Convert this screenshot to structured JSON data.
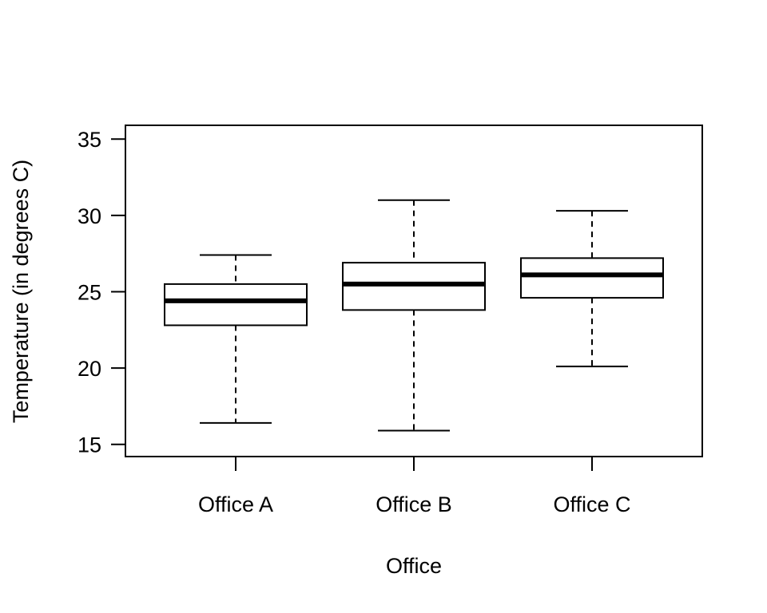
{
  "chart_data": {
    "type": "box",
    "title": "",
    "xlabel": "Office",
    "ylabel": "Temperature (in degrees C)",
    "ylim": [
      14.2,
      35.9
    ],
    "yticks": [
      15,
      20,
      25,
      30,
      35
    ],
    "ytick_labels": [
      "15",
      "20",
      "25",
      "30",
      "35"
    ],
    "grid": false,
    "categories": [
      "Office A",
      "Office B",
      "Office C"
    ],
    "boxes": [
      {
        "label": "Office A",
        "min": 16.4,
        "q1": 22.8,
        "median": 24.4,
        "q3": 25.5,
        "max": 27.4
      },
      {
        "label": "Office B",
        "min": 15.9,
        "q1": 23.8,
        "median": 25.5,
        "q3": 26.9,
        "max": 31.0
      },
      {
        "label": "Office C",
        "min": 20.1,
        "q1": 24.6,
        "median": 26.1,
        "q3": 27.2,
        "max": 30.3
      }
    ],
    "colors": {
      "box_fill": "#ffffff",
      "stroke": "#000000"
    }
  }
}
